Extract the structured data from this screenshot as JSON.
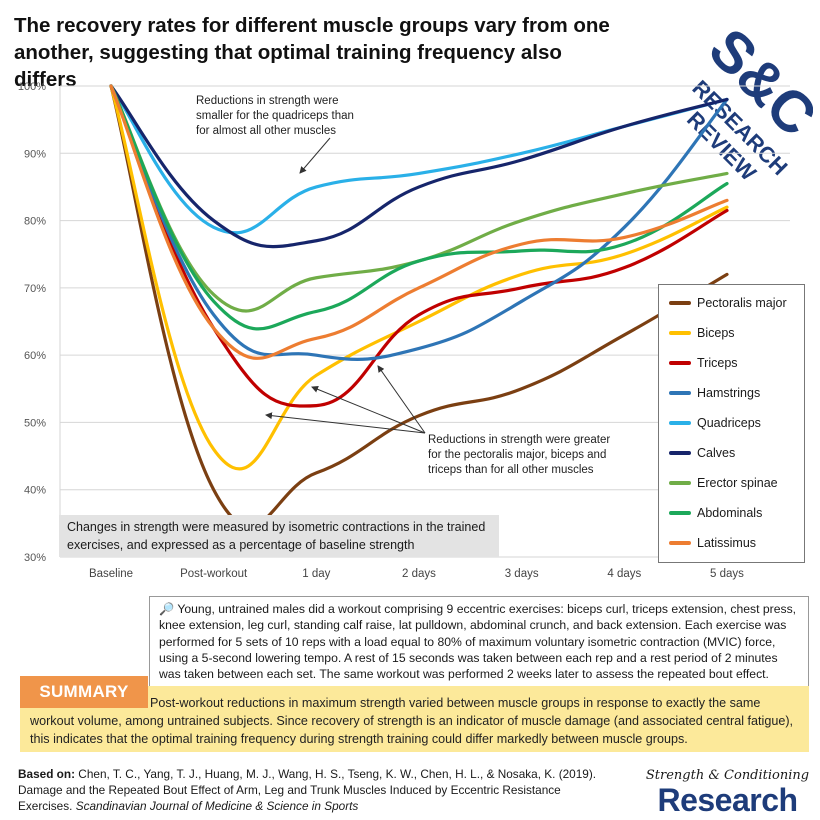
{
  "title": "The recovery rates for different muscle groups vary from one another, suggesting that optimal training frequency also differs",
  "logo": {
    "line1": "S&C",
    "line2": "RESEARCH",
    "line3": "REVIEW"
  },
  "annotations": {
    "top": [
      "Reductions in strength were",
      "smaller for the quadriceps than",
      "for almost all other muscles"
    ],
    "bottom": [
      "Reductions in strength were greater",
      "for the pectoralis major, biceps and",
      "triceps than for all other muscles"
    ]
  },
  "note": "Changes in strength were measured by isometric contractions in the trained exercises, and expressed as a percentage of baseline strength",
  "method": {
    "icon": "magnifier-icon",
    "text": "Young, untrained males did a workout comprising 9 eccentric exercises: biceps curl, triceps extension, chest press, knee extension, leg curl, standing calf raise, lat pulldown, abdominal crunch, and back extension. Each exercise was performed for 5 sets of 10 reps with a load equal to 80% of maximum voluntary isometric contraction (MVIC) force, using a 5-second lowering tempo. A rest of 15 seconds was taken between each rep and a rest period of 2 minutes was taken between each set. The same workout was performed 2 weeks later to assess the repeated bout effect."
  },
  "summary": {
    "label": "SUMMARY",
    "text": "Post-workout reductions in maximum strength varied between muscle groups in response to exactly the same workout volume, among untrained subjects. Since recovery of strength is an indicator of muscle damage (and associated central fatigue), this indicates that the optimal training frequency during strength training could differ markedly between muscle groups."
  },
  "citation": {
    "label": "Based on:",
    "authors": " Chen, T. C., Yang, T. J., Huang, M. J., Wang, H. S., Tseng, K. W., Chen, H. L., & Nosaka, K. (2019). Damage and the Repeated Bout Effect of Arm, Leg and Trunk Muscles Induced by Eccentric Resistance Exercises. ",
    "journal": "Scandinavian Journal of Medicine & Science in Sports"
  },
  "brand": {
    "line1": "Strength & Conditioning",
    "line2": "Research"
  },
  "chart_data": {
    "type": "line",
    "categories": [
      "Baseline",
      "Post-workout",
      "1 day",
      "2 days",
      "3 days",
      "4 days",
      "5 days"
    ],
    "ylim": [
      30,
      100
    ],
    "yticks": [
      "30%",
      "40%",
      "50%",
      "60%",
      "70%",
      "80%",
      "90%",
      "100%"
    ],
    "series": [
      {
        "name": "Pectoralis major",
        "color": "#7b3f12",
        "values": [
          100,
          40,
          42.5,
          51,
          55,
          63,
          72
        ]
      },
      {
        "name": "Biceps",
        "color": "#ffc000",
        "values": [
          100,
          46,
          57,
          65,
          72,
          75,
          82
        ]
      },
      {
        "name": "Triceps",
        "color": "#c00000",
        "values": [
          100,
          64,
          52.5,
          66,
          70,
          73,
          81.5
        ]
      },
      {
        "name": "Hamstrings",
        "color": "#2e75b6",
        "values": [
          100,
          66,
          60,
          61,
          68,
          79,
          98
        ]
      },
      {
        "name": "Quadriceps",
        "color": "#2ab0e8",
        "values": [
          100,
          79,
          85,
          87,
          90,
          94,
          98
        ]
      },
      {
        "name": "Calves",
        "color": "#16256b",
        "values": [
          100,
          80,
          77,
          85,
          89,
          94,
          98
        ]
      },
      {
        "name": "Erector spinae",
        "color": "#70ad47",
        "values": [
          100,
          69,
          71.5,
          74,
          80,
          84,
          87
        ]
      },
      {
        "name": "Abdominals",
        "color": "#1ca85a",
        "values": [
          100,
          68,
          66.5,
          74,
          75.5,
          76.5,
          85.5
        ]
      },
      {
        "name": "Latissimus",
        "color": "#ed7d31",
        "values": [
          100,
          64,
          62.5,
          70,
          76.5,
          77.5,
          83
        ]
      }
    ]
  }
}
